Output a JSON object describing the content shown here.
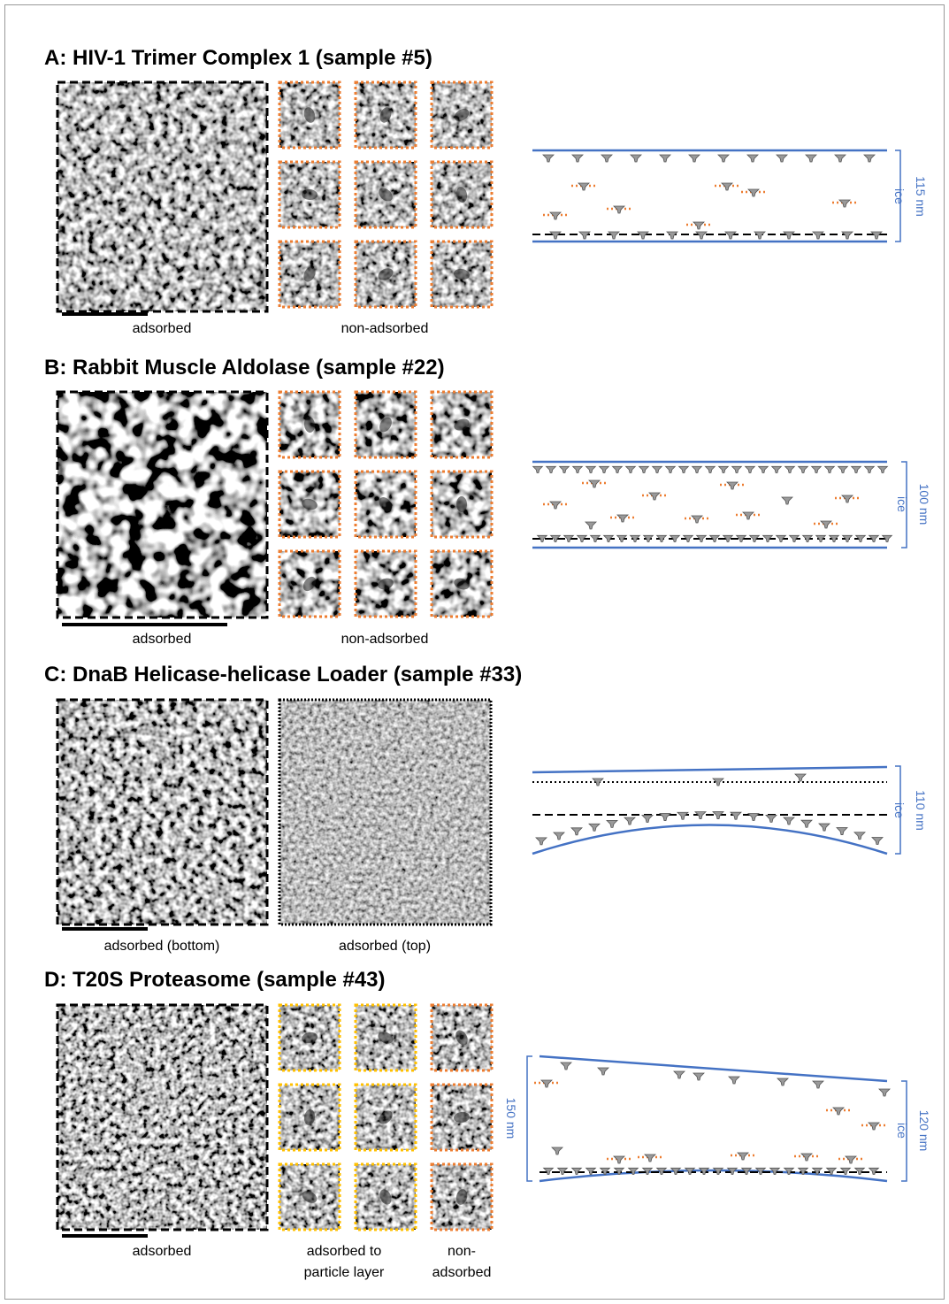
{
  "panels": [
    {
      "title": "A: HIV-1 Trimer Complex 1 (sample #5)",
      "captions": [
        [
          "adsorbed"
        ],
        [
          "non-adsorbed"
        ]
      ],
      "thickness": [
        "115 nm"
      ],
      "ice": "ice"
    },
    {
      "title": "B: Rabbit Muscle Aldolase (sample #22)",
      "captions": [
        [
          "adsorbed"
        ],
        [
          "non-adsorbed"
        ]
      ],
      "thickness": [
        "100 nm"
      ],
      "ice": "ice"
    },
    {
      "title": "C: DnaB Helicase-helicase Loader (sample #33)",
      "captions": [
        [
          "adsorbed (bottom)"
        ],
        [
          "adsorbed (top)"
        ]
      ],
      "thickness": [
        "110 nm"
      ],
      "ice": "ice"
    },
    {
      "title": "D: T20S Proteasome (sample #43)",
      "captions": [
        [
          "adsorbed"
        ],
        [
          "adsorbed to",
          "particle layer"
        ],
        [
          "non-",
          "adsorbed"
        ]
      ],
      "thickness": [
        "150 nm",
        "120 nm"
      ],
      "ice": "ice"
    }
  ]
}
